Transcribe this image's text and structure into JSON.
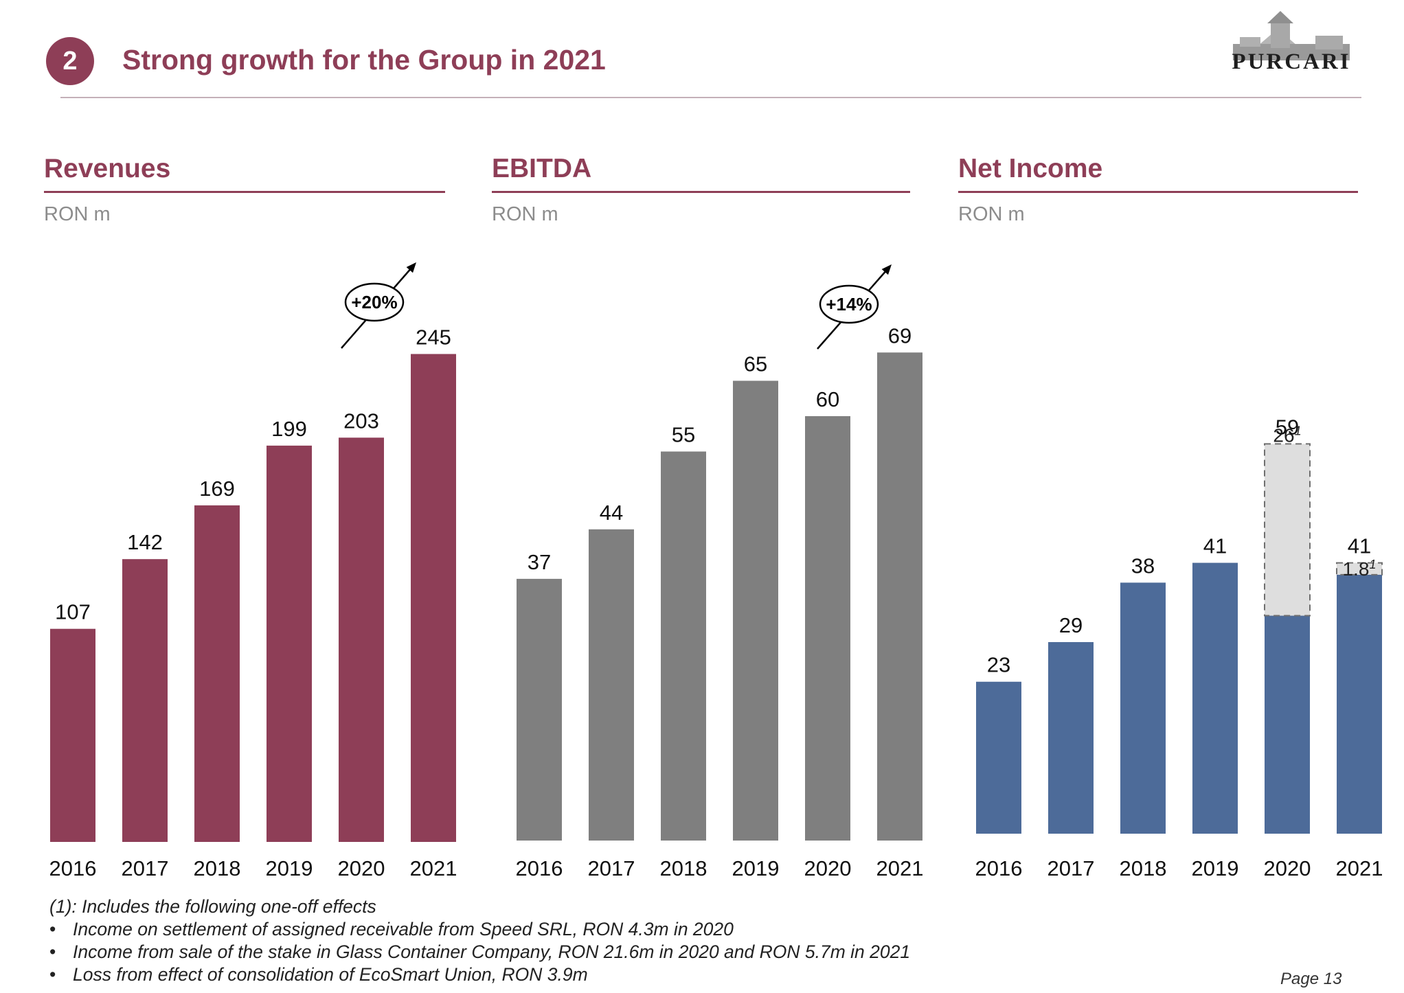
{
  "header": {
    "section_number": "2",
    "title": "Strong growth for the Group in 2021",
    "logo_text": "PURCARI"
  },
  "panels": [
    {
      "title": "Revenues",
      "unit": "RON m",
      "color": "#8e3e57",
      "categories": [
        "2016",
        "2017",
        "2018",
        "2019",
        "2020",
        "2021"
      ],
      "values": [
        107,
        142,
        169,
        199,
        203,
        245
      ],
      "growth_label": "+20%"
    },
    {
      "title": "EBITDA",
      "unit": "RON m",
      "color": "#7f7f7f",
      "categories": [
        "2016",
        "2017",
        "2018",
        "2019",
        "2020",
        "2021"
      ],
      "values": [
        37,
        44,
        55,
        65,
        60,
        69
      ],
      "growth_label": "+14%"
    },
    {
      "title": "Net Income",
      "unit": "RON m",
      "color": "#4d6b99",
      "one_off_color": "#dedede",
      "categories": [
        "2016",
        "2017",
        "2018",
        "2019",
        "2020",
        "2021"
      ],
      "values": [
        23,
        29,
        38,
        41,
        59,
        41
      ],
      "one_off": [
        null,
        null,
        null,
        null,
        26,
        1.8
      ],
      "one_off_labels": [
        null,
        null,
        null,
        null,
        "26",
        "1.8"
      ],
      "one_off_note": "1"
    }
  ],
  "footnote": {
    "intro": "(1): Includes the following one-off effects",
    "items": [
      "Income on settlement of assigned receivable from Speed SRL, RON 4.3m in 2020",
      "Income from sale of the stake in Glass Container Company, RON 21.6m in 2020 and RON 5.7m in 2021",
      "Loss from effect of consolidation of EcoSmart Union, RON 3.9m"
    ]
  },
  "page_label": "Page 13"
}
